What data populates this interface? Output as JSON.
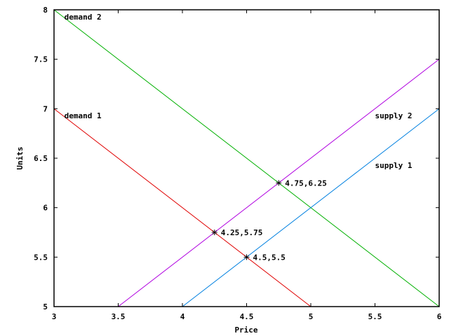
{
  "chart_data": {
    "type": "line",
    "title": "",
    "xlabel": "Price",
    "ylabel": "Units",
    "xlim": [
      3,
      6
    ],
    "ylim": [
      5,
      8
    ],
    "grid": false,
    "legend": "inline labels",
    "x_ticks": [
      "3",
      "3.5",
      "4",
      "4.5",
      "5",
      "5.5",
      "6"
    ],
    "y_ticks": [
      "5",
      "5.5",
      "6",
      "6.5",
      "7",
      "7.5",
      "8"
    ],
    "series": [
      {
        "name": "demand 1",
        "color": "#e00000",
        "points": [
          [
            3,
            7
          ],
          [
            5,
            5
          ]
        ],
        "label_at": [
          3.08,
          6.93
        ]
      },
      {
        "name": "demand 2",
        "color": "#00b000",
        "points": [
          [
            3,
            8
          ],
          [
            6,
            5
          ]
        ],
        "label_at": [
          3.08,
          7.93
        ]
      },
      {
        "name": "supply 1",
        "color": "#0080e0",
        "points": [
          [
            4,
            5
          ],
          [
            6,
            7
          ]
        ],
        "label_at": [
          5.5,
          6.43
        ]
      },
      {
        "name": "supply 2",
        "color": "#b000e0",
        "points": [
          [
            3.5,
            5
          ],
          [
            6,
            7.5
          ]
        ],
        "label_at": [
          5.5,
          6.93
        ]
      }
    ],
    "annotations": [
      {
        "text": "4.25,5.75",
        "x": 4.25,
        "y": 5.75
      },
      {
        "text": "4.5,5.5",
        "x": 4.5,
        "y": 5.5
      },
      {
        "text": "4.75,6.25",
        "x": 4.75,
        "y": 6.25
      }
    ]
  }
}
